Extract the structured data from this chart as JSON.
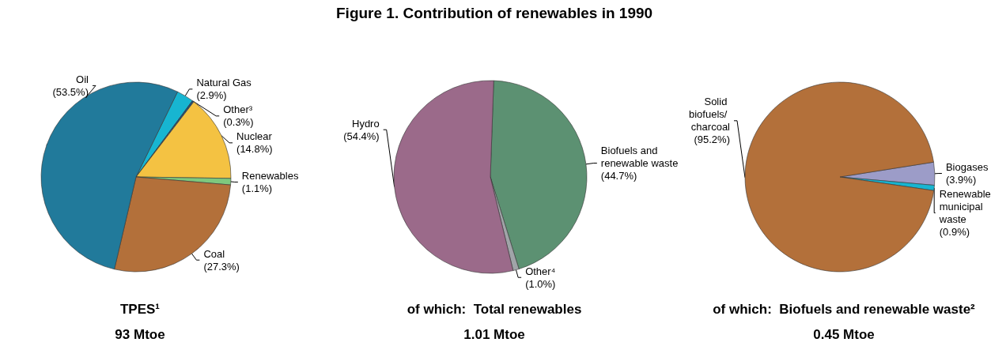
{
  "chart_data": [
    {
      "type": "pie",
      "subtitle": "TPES¹",
      "annotations": [
        "93 Mtoe"
      ],
      "categories": [
        "Natural Gas",
        "Other³",
        "Nuclear",
        "Renewables",
        "Coal",
        "Oil"
      ],
      "values": [
        2.9,
        0.3,
        14.8,
        1.1,
        27.3,
        53.5
      ],
      "value_labels": [
        "(2.9%)",
        "(0.3%)",
        "(14.8%)",
        "(1.1%)",
        "(27.3%)",
        "(53.5%)"
      ],
      "colors": [
        "#17b5d1",
        "#1f4e79",
        "#f4c242",
        "#7ec87e",
        "#b3703a",
        "#217a9b"
      ]
    },
    {
      "type": "pie",
      "title": "Figure 1. Contribution of renewables in 1990",
      "subtitle": "of which:  Total renewables",
      "annotations": [
        "1.01 Mtoe"
      ],
      "categories": [
        "Biofuels and renewable waste",
        "Other⁴",
        "Hydro"
      ],
      "values": [
        44.7,
        1.0,
        54.4
      ],
      "value_labels": [
        "(44.7%)",
        "(1.0%)",
        "(54.4%)"
      ],
      "colors": [
        "#5c9172",
        "#a0a4a8",
        "#9b6a8a"
      ]
    },
    {
      "type": "pie",
      "subtitle": "of which:  Biofuels and renewable waste²",
      "annotations": [
        "0.45 Mtoe"
      ],
      "categories": [
        "Biogases",
        "Renewable municipal waste",
        "Solid biofuels/ charcoal"
      ],
      "values": [
        3.9,
        0.9,
        95.2
      ],
      "value_labels": [
        "(3.9%)",
        "(0.9%)",
        "(95.2%)"
      ],
      "colors": [
        "#9c9cc8",
        "#17b5d1",
        "#b3703a"
      ]
    }
  ]
}
